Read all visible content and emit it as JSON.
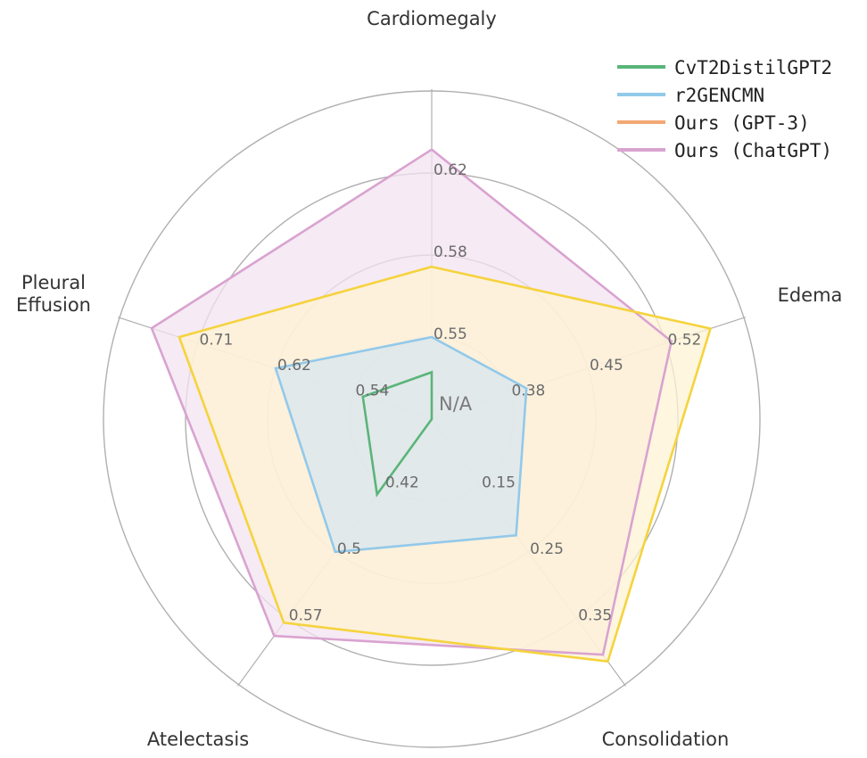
{
  "chart_data": {
    "type": "radar",
    "axes": [
      "Cardiomegaly",
      "Edema",
      "Consolidation",
      "Atelectasis",
      "Pleural Effusion"
    ],
    "center_label": "N/A",
    "rings": 4,
    "ring_tick_labels": [
      [
        "0.55",
        "0.58",
        "0.62"
      ],
      [
        "0.38",
        "0.45",
        "0.52"
      ],
      [
        "0.15",
        "0.25",
        "0.35"
      ],
      [
        "0.42",
        "0.5",
        "0.57"
      ],
      [
        "0.54",
        "0.62",
        "0.71"
      ]
    ],
    "grid": true,
    "legend_position": "top-right",
    "series": [
      {
        "name": "CvT2DistilGPT2",
        "color": "#5ab57a",
        "fill": false,
        "values": [
          0.535,
          0.25,
          0.05,
          0.43,
          0.53
        ]
      },
      {
        "name": "r2GENCMN",
        "color": "#92c9ea",
        "fill": true,
        "fill_color": "#d8e6ef",
        "values": [
          0.55,
          0.395,
          0.225,
          0.495,
          0.625
        ]
      },
      {
        "name": "Ours (GPT-3)",
        "color": "#f2a873",
        "fill": true,
        "fill_color": "#fff3d4",
        "line_color": "#f5d33d",
        "values": [
          0.58,
          0.56,
          0.415,
          0.575,
          0.73
        ]
      },
      {
        "name": "Ours (ChatGPT)",
        "color": "#d9a3d0",
        "fill": true,
        "fill_color": "#f3e3f0",
        "line_color": "#d9a3d0",
        "values": [
          0.63,
          0.525,
          0.405,
          0.59,
          0.76
        ]
      }
    ]
  }
}
